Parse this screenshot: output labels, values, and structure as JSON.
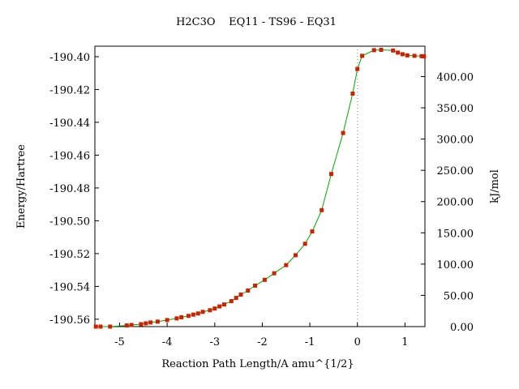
{
  "chart_data": {
    "type": "line",
    "title": "H2C3O    EQ11 - TS96 - EQ31",
    "xlabel": "Reaction Path Length/A amu^{1/2}",
    "ylabel": "Energy/Hartree",
    "y2label": "kJ/mol",
    "xlim": [
      -5.52,
      1.42
    ],
    "ylim": [
      -190.5645,
      -190.3936
    ],
    "y2lim": [
      0,
      448.6
    ],
    "x_ticks": [
      -5,
      -4,
      -3,
      -2,
      -1,
      0,
      1
    ],
    "x_tick_labels": [
      "-5",
      "-4",
      "-3",
      "-2",
      "-1",
      "0",
      "1"
    ],
    "y_ticks": [
      -190.4,
      -190.42,
      -190.44,
      -190.46,
      -190.48,
      -190.5,
      -190.52,
      -190.54,
      -190.56
    ],
    "y_tick_labels": [
      "-190.40",
      "-190.42",
      "-190.44",
      "-190.46",
      "-190.48",
      "-190.50",
      "-190.52",
      "-190.54",
      "-190.56"
    ],
    "y2_ticks": [
      0,
      50,
      100,
      150,
      200,
      250,
      300,
      350,
      400
    ],
    "y2_tick_labels": [
      "0.00",
      "50.00",
      "100.00",
      "150.00",
      "200.00",
      "250.00",
      "300.00",
      "350.00",
      "400.00"
    ],
    "ts_x": 0,
    "grid": false,
    "line_color": "#00aa00",
    "marker_color": "#cc2200",
    "ts_line_color": "#888888",
    "series": [
      {
        "x": [
          -5.5,
          -5.4,
          -5.2,
          -4.85,
          -4.75,
          -4.55,
          -4.45,
          -4.35,
          -4.2,
          -4.0,
          -3.8,
          -3.7,
          -3.55,
          -3.45,
          -3.35,
          -3.25,
          -3.1,
          -3.0,
          -2.9,
          -2.8,
          -2.65,
          -2.55,
          -2.45,
          -2.3,
          -2.15,
          -1.95,
          -1.75,
          -1.5,
          -1.3,
          -1.1,
          -0.95,
          -0.75,
          -0.55,
          -0.3,
          -0.1,
          0.0,
          0.1,
          0.35,
          0.5,
          0.75,
          0.85,
          0.95,
          1.05,
          1.2,
          1.35,
          1.4
        ],
        "y": [
          -190.5645,
          -190.5645,
          -190.5645,
          -190.5638,
          -190.5635,
          -190.563,
          -190.5625,
          -190.562,
          -190.5615,
          -190.5605,
          -190.5595,
          -190.5588,
          -190.558,
          -190.5572,
          -190.5565,
          -190.5555,
          -190.5545,
          -190.5535,
          -190.5522,
          -190.551,
          -190.549,
          -190.547,
          -190.545,
          -190.5425,
          -190.5395,
          -190.536,
          -190.532,
          -190.527,
          -190.521,
          -190.514,
          -190.5065,
          -190.4935,
          -190.4715,
          -190.4465,
          -190.4225,
          -190.4075,
          -190.3995,
          -190.396,
          -190.3958,
          -190.3962,
          -190.3975,
          -190.3985,
          -190.3992,
          -190.3995,
          -190.3997,
          -190.3998
        ]
      }
    ]
  }
}
